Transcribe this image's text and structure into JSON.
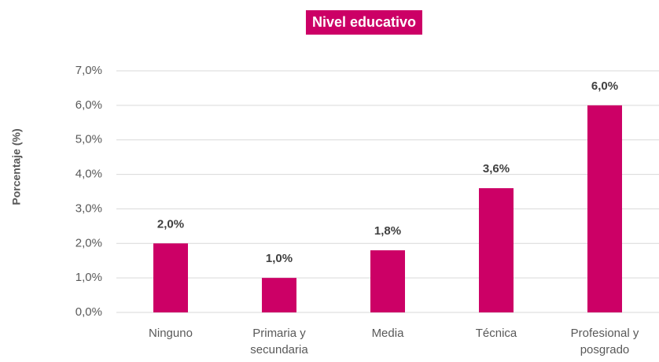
{
  "chart_data": {
    "type": "bar",
    "title": "Nivel educativo",
    "ylabel": "Porcentaje (%)",
    "categories": [
      "Ninguno",
      "Primaria y secundaria",
      "Media",
      "Técnica",
      "Profesional y posgrado"
    ],
    "values": [
      2.0,
      1.0,
      1.8,
      3.6,
      6.0
    ],
    "value_labels": [
      "2,0%",
      "1,0%",
      "1,8%",
      "3,6%",
      "6,0%"
    ],
    "color": "#cc0066",
    "ylim": [
      0,
      7
    ],
    "yticks": [
      {
        "value": 0,
        "label": "0,0%"
      },
      {
        "value": 1,
        "label": "1,0%"
      },
      {
        "value": 2,
        "label": "2,0%"
      },
      {
        "value": 3,
        "label": "3,0%"
      },
      {
        "value": 4,
        "label": "4,0%"
      },
      {
        "value": 5,
        "label": "5,0%"
      },
      {
        "value": 6,
        "label": "6,0%"
      },
      {
        "value": 7,
        "label": "7,0%"
      }
    ],
    "grid": true
  }
}
